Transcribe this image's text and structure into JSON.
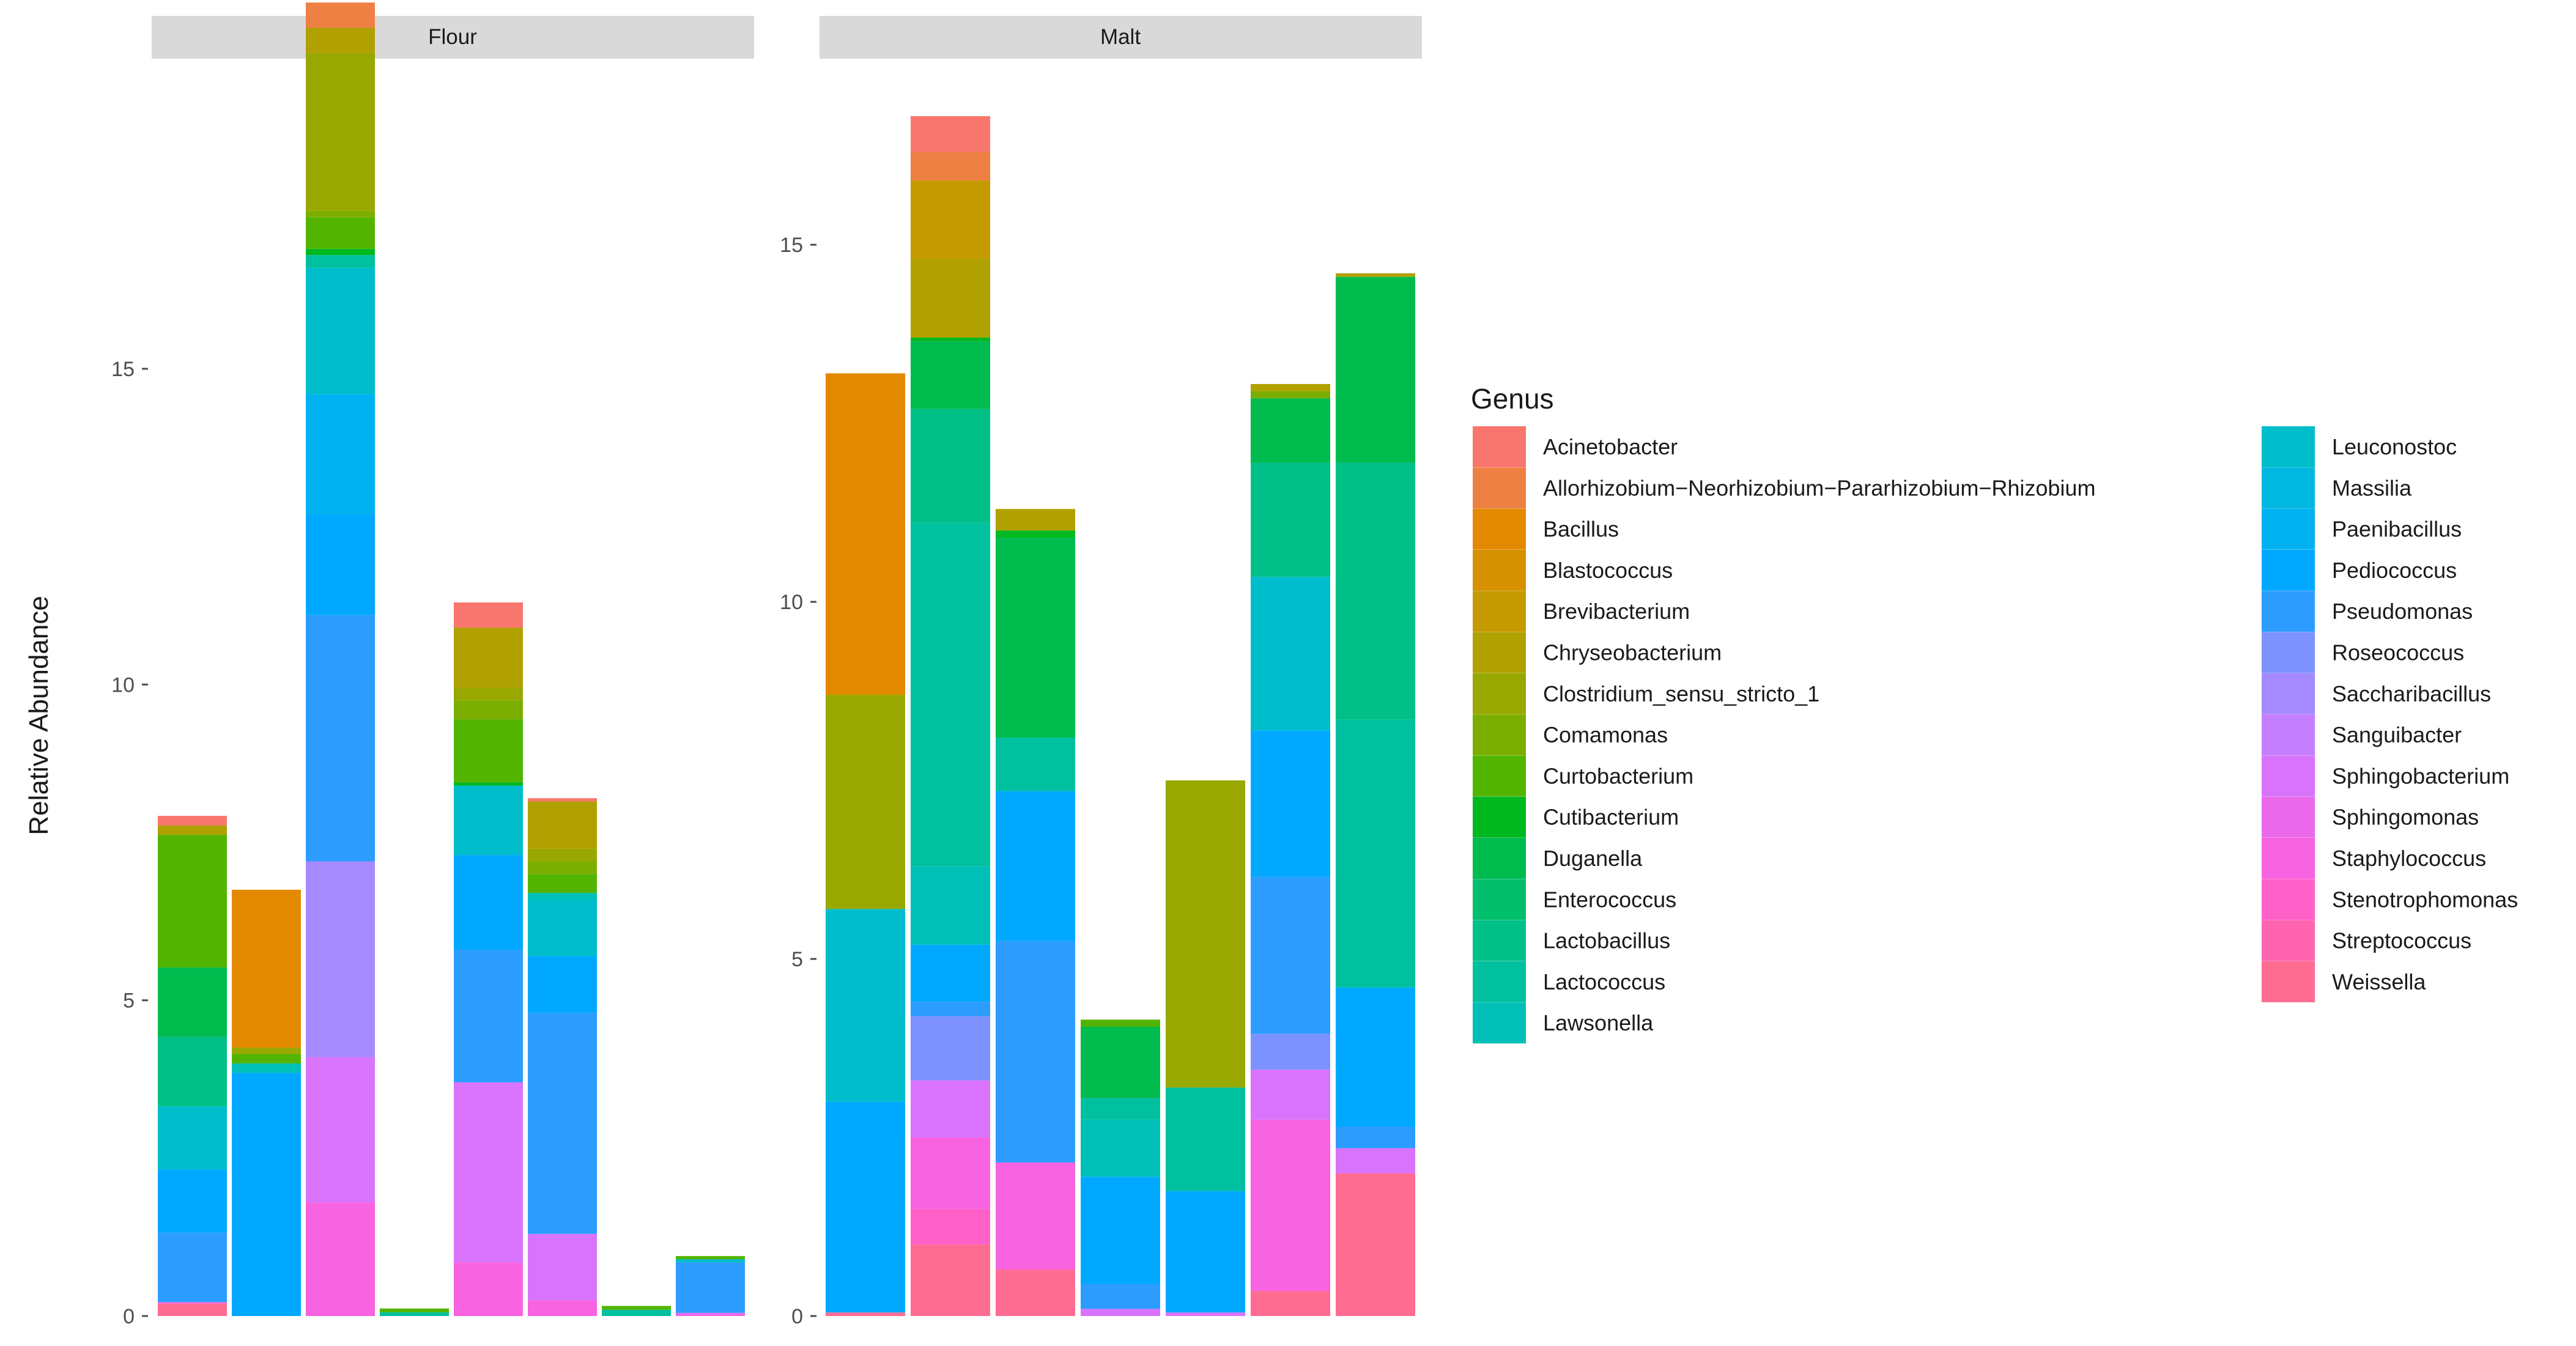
{
  "chart_data": {
    "type": "bar",
    "stacked": true,
    "ylabel": "Relative Abundance",
    "xlabel": "",
    "legend_title": "Genus",
    "legend_position": "right",
    "genera": [
      {
        "name": "Acinetobacter",
        "color": "#F8766D"
      },
      {
        "name": "Allorhizobium−Neorhizobium−Pararhizobium−Rhizobium",
        "color": "#EE8044"
      },
      {
        "name": "Bacillus",
        "color": "#E38900"
      },
      {
        "name": "Blastococcus",
        "color": "#D59100"
      },
      {
        "name": "Brevibacterium",
        "color": "#C49A00"
      },
      {
        "name": "Chryseobacterium",
        "color": "#B0A100"
      },
      {
        "name": "Clostridium_sensu_stricto_1",
        "color": "#99A800"
      },
      {
        "name": "Comamonas",
        "color": "#7CAE00"
      },
      {
        "name": "Curtobacterium",
        "color": "#53B400"
      },
      {
        "name": "Cutibacterium",
        "color": "#00B81F"
      },
      {
        "name": "Duganella",
        "color": "#00BB4E"
      },
      {
        "name": "Enterococcus",
        "color": "#00BE6C"
      },
      {
        "name": "Lactobacillus",
        "color": "#00C087"
      },
      {
        "name": "Lactococcus",
        "color": "#00C0A0"
      },
      {
        "name": "Lawsonella",
        "color": "#00BFB7"
      },
      {
        "name": "Leuconostoc",
        "color": "#00BDCC"
      },
      {
        "name": "Massilia",
        "color": "#00B8DF"
      },
      {
        "name": "Paenibacillus",
        "color": "#00B2F0"
      },
      {
        "name": "Pediococcus",
        "color": "#00A9FF"
      },
      {
        "name": "Pseudomonas",
        "color": "#2C9DFF"
      },
      {
        "name": "Roseococcus",
        "color": "#7C93FF"
      },
      {
        "name": "Saccharibacillus",
        "color": "#A58AFF"
      },
      {
        "name": "Sanguibacter",
        "color": "#C37FFF"
      },
      {
        "name": "Sphingobacterium",
        "color": "#D973FC"
      },
      {
        "name": "Sphingomonas",
        "color": "#EA69EB"
      },
      {
        "name": "Staphylococcus",
        "color": "#F763E0"
      },
      {
        "name": "Stenotrophomonas",
        "color": "#FF61C9"
      },
      {
        "name": "Streptococcus",
        "color": "#FF64B0"
      },
      {
        "name": "Weissella",
        "color": "#FF6C92"
      }
    ],
    "panels": [
      {
        "name": "Flour",
        "ylim": [
          0,
          19
        ],
        "yticks": [
          0,
          5,
          10,
          15
        ],
        "bars": [
          {
            "segments": [
              [
                "Weissella",
                0.2
              ],
              [
                "Staphylococcus",
                0.02
              ],
              [
                "Pseudomonas",
                1.1
              ],
              [
                "Pediococcus",
                1.0
              ],
              [
                "Leuconostoc",
                1.0
              ],
              [
                "Lactobacillus",
                1.1
              ],
              [
                "Duganella",
                1.1
              ],
              [
                "Curtobacterium",
                2.1
              ],
              [
                "Chryseobacterium",
                0.15
              ],
              [
                "Acinetobacter",
                0.15
              ]
            ]
          },
          {
            "segments": [
              [
                "Pediococcus",
                3.85
              ],
              [
                "Lawsonella",
                0.15
              ],
              [
                "Curtobacterium",
                0.15
              ],
              [
                "Clostridium_sensu_stricto_1",
                0.1
              ],
              [
                "Bacillus",
                2.5
              ]
            ]
          },
          {
            "segments": [
              [
                "Staphylococcus",
                1.8
              ],
              [
                "Sphingobacterium",
                2.3
              ],
              [
                "Saccharibacillus",
                3.1
              ],
              [
                "Pseudomonas",
                3.9
              ],
              [
                "Pediococcus",
                1.6
              ],
              [
                "Paenibacillus",
                1.9
              ],
              [
                "Leuconostoc",
                2.0
              ],
              [
                "Lactococcus",
                0.2
              ],
              [
                "Cutibacterium",
                0.1
              ],
              [
                "Curtobacterium",
                0.5
              ],
              [
                "Comamonas",
                0.1
              ],
              [
                "Clostridium_sensu_stricto_1",
                2.5
              ],
              [
                "Chryseobacterium",
                0.4
              ],
              [
                "Allorhizobium−Neorhizobium−Pararhizobium−Rhizobium",
                0.4
              ]
            ]
          },
          {
            "segments": [
              [
                "Lactococcus",
                0.06
              ],
              [
                "Curtobacterium",
                0.06
              ]
            ]
          },
          {
            "segments": [
              [
                "Staphylococcus",
                0.85
              ],
              [
                "Sphingobacterium",
                2.85
              ],
              [
                "Pseudomonas",
                2.1
              ],
              [
                "Pediococcus",
                1.5
              ],
              [
                "Leuconostoc",
                1.1
              ],
              [
                "Cutibacterium",
                0.05
              ],
              [
                "Curtobacterium",
                1.0
              ],
              [
                "Comamonas",
                0.3
              ],
              [
                "Clostridium_sensu_stricto_1",
                0.2
              ],
              [
                "Chryseobacterium",
                0.95
              ],
              [
                "Acinetobacter",
                0.4
              ]
            ]
          },
          {
            "segments": [
              [
                "Staphylococcus",
                0.25
              ],
              [
                "Sphingobacterium",
                1.05
              ],
              [
                "Pseudomonas",
                3.5
              ],
              [
                "Pediococcus",
                0.9
              ],
              [
                "Leuconostoc",
                0.9
              ],
              [
                "Lawsonella",
                0.1
              ],
              [
                "Curtobacterium",
                0.3
              ],
              [
                "Comamonas",
                0.2
              ],
              [
                "Clostridium_sensu_stricto_1",
                0.2
              ],
              [
                "Chryseobacterium",
                0.75
              ],
              [
                "Acinetobacter",
                0.05
              ]
            ]
          },
          {
            "segments": [
              [
                "Lactococcus",
                0.1
              ],
              [
                "Curtobacterium",
                0.06
              ]
            ]
          },
          {
            "segments": [
              [
                "Sphingomonas",
                0.05
              ],
              [
                "Pseudomonas",
                0.8
              ],
              [
                "Leuconostoc",
                0.05
              ],
              [
                "Curtobacterium",
                0.05
              ]
            ]
          }
        ]
      },
      {
        "name": "Malt",
        "ylim": [
          0,
          16.8
        ],
        "yticks": [
          0,
          5,
          10,
          15
        ],
        "bars": [
          {
            "segments": [
              [
                "Weissella",
                0.05
              ],
              [
                "Pediococcus",
                2.95
              ],
              [
                "Leuconostoc",
                2.7
              ],
              [
                "Clostridium_sensu_stricto_1",
                3.0
              ],
              [
                "Bacillus",
                4.5
              ]
            ]
          },
          {
            "segments": [
              [
                "Weissella",
                1.0
              ],
              [
                "Stenotrophomonas",
                0.5
              ],
              [
                "Staphylococcus",
                1.0
              ],
              [
                "Sphingobacterium",
                0.8
              ],
              [
                "Roseococcus",
                0.9
              ],
              [
                "Pseudomonas",
                0.2
              ],
              [
                "Pediococcus",
                0.8
              ],
              [
                "Lawsonella",
                1.1
              ],
              [
                "Lactococcus",
                4.8
              ],
              [
                "Lactobacillus",
                1.6
              ],
              [
                "Duganella",
                0.95
              ],
              [
                "Cutibacterium",
                0.05
              ],
              [
                "Chryseobacterium",
                1.1
              ],
              [
                "Brevibacterium",
                1.1
              ],
              [
                "Allorhizobium−Neorhizobium−Pararhizobium−Rhizobium",
                0.4
              ],
              [
                "Acinetobacter",
                0.5
              ]
            ]
          },
          {
            "segments": [
              [
                "Weissella",
                0.65
              ],
              [
                "Staphylococcus",
                1.5
              ],
              [
                "Pseudomonas",
                3.1
              ],
              [
                "Pediococcus",
                2.1
              ],
              [
                "Lactococcus",
                0.75
              ],
              [
                "Duganella",
                2.8
              ],
              [
                "Cutibacterium",
                0.1
              ],
              [
                "Chryseobacterium",
                0.3
              ]
            ]
          },
          {
            "segments": [
              [
                "Sphingobacterium",
                0.1
              ],
              [
                "Pseudomonas",
                0.35
              ],
              [
                "Pediococcus",
                1.5
              ],
              [
                "Lawsonella",
                0.8
              ],
              [
                "Lactococcus",
                0.3
              ],
              [
                "Duganella",
                1.0
              ],
              [
                "Curtobacterium",
                0.1
              ]
            ]
          },
          {
            "segments": [
              [
                "Sphingobacterium",
                0.05
              ],
              [
                "Pediococcus",
                1.7
              ],
              [
                "Lactococcus",
                1.45
              ],
              [
                "Clostridium_sensu_stricto_1",
                4.3
              ]
            ]
          },
          {
            "segments": [
              [
                "Weissella",
                0.35
              ],
              [
                "Staphylococcus",
                2.4
              ],
              [
                "Sphingobacterium",
                0.7
              ],
              [
                "Roseococcus",
                0.5
              ],
              [
                "Pseudomonas",
                2.2
              ],
              [
                "Pediococcus",
                2.05
              ],
              [
                "Leuconostoc",
                2.15
              ],
              [
                "Lactobacillus",
                1.6
              ],
              [
                "Duganella",
                0.9
              ],
              [
                "Comamonas",
                0.1
              ],
              [
                "Chryseobacterium",
                0.1
              ]
            ]
          },
          {
            "segments": [
              [
                "Weissella",
                2.0
              ],
              [
                "Sphingobacterium",
                0.35
              ],
              [
                "Pseudomonas",
                0.3
              ],
              [
                "Pediococcus",
                1.95
              ],
              [
                "Lactococcus",
                3.75
              ],
              [
                "Lactobacillus",
                3.6
              ],
              [
                "Duganella",
                2.6
              ],
              [
                "Chryseobacterium",
                0.05
              ]
            ]
          }
        ]
      }
    ]
  }
}
